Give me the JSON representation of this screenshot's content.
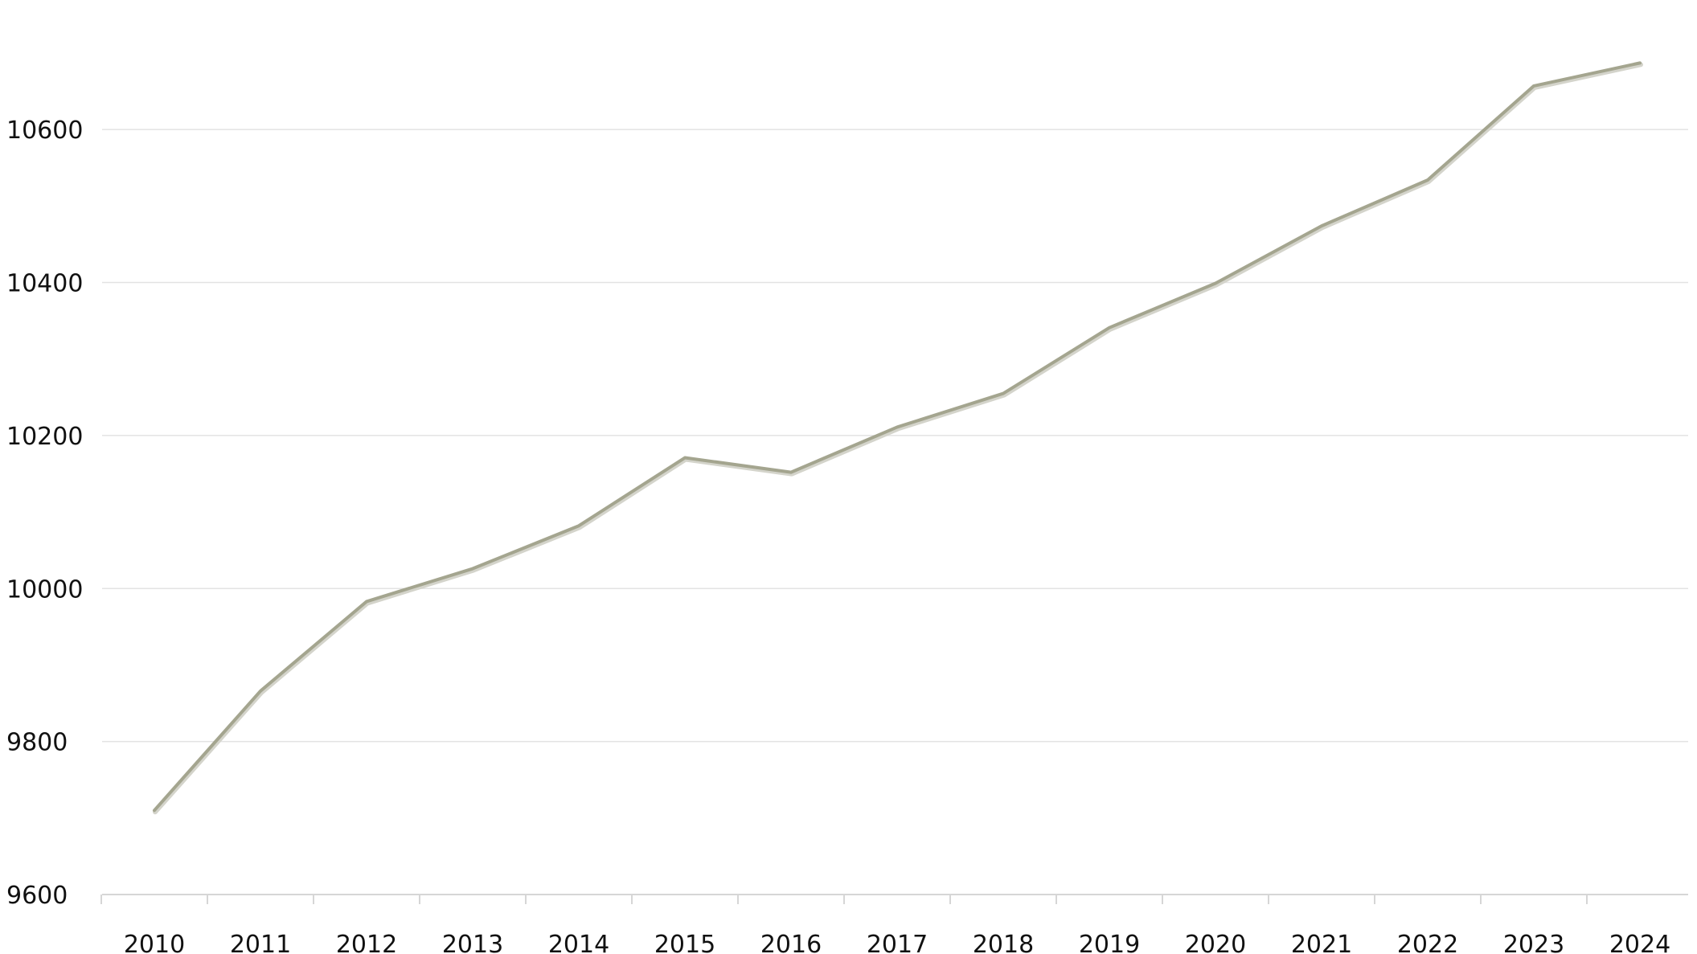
{
  "chart_data": {
    "type": "line",
    "title": "",
    "xlabel": "",
    "ylabel": "",
    "categories": [
      "2010",
      "2011",
      "2012",
      "2013",
      "2014",
      "2015",
      "2016",
      "2017",
      "2018",
      "2019",
      "2020",
      "2021",
      "2022",
      "2023",
      "2024"
    ],
    "series": [
      {
        "values": [
          9710,
          9866,
          9983,
          10026,
          10082,
          10171,
          10152,
          10211,
          10255,
          10341,
          10399,
          10474,
          10534,
          10657,
          10687
        ],
        "color": "#a4a58f"
      }
    ],
    "ylim": [
      9600,
      10700
    ],
    "yticks": [
      "9600",
      "9800",
      "10000",
      "10200",
      "10400",
      "10600"
    ],
    "grid": true,
    "legend": "none"
  }
}
